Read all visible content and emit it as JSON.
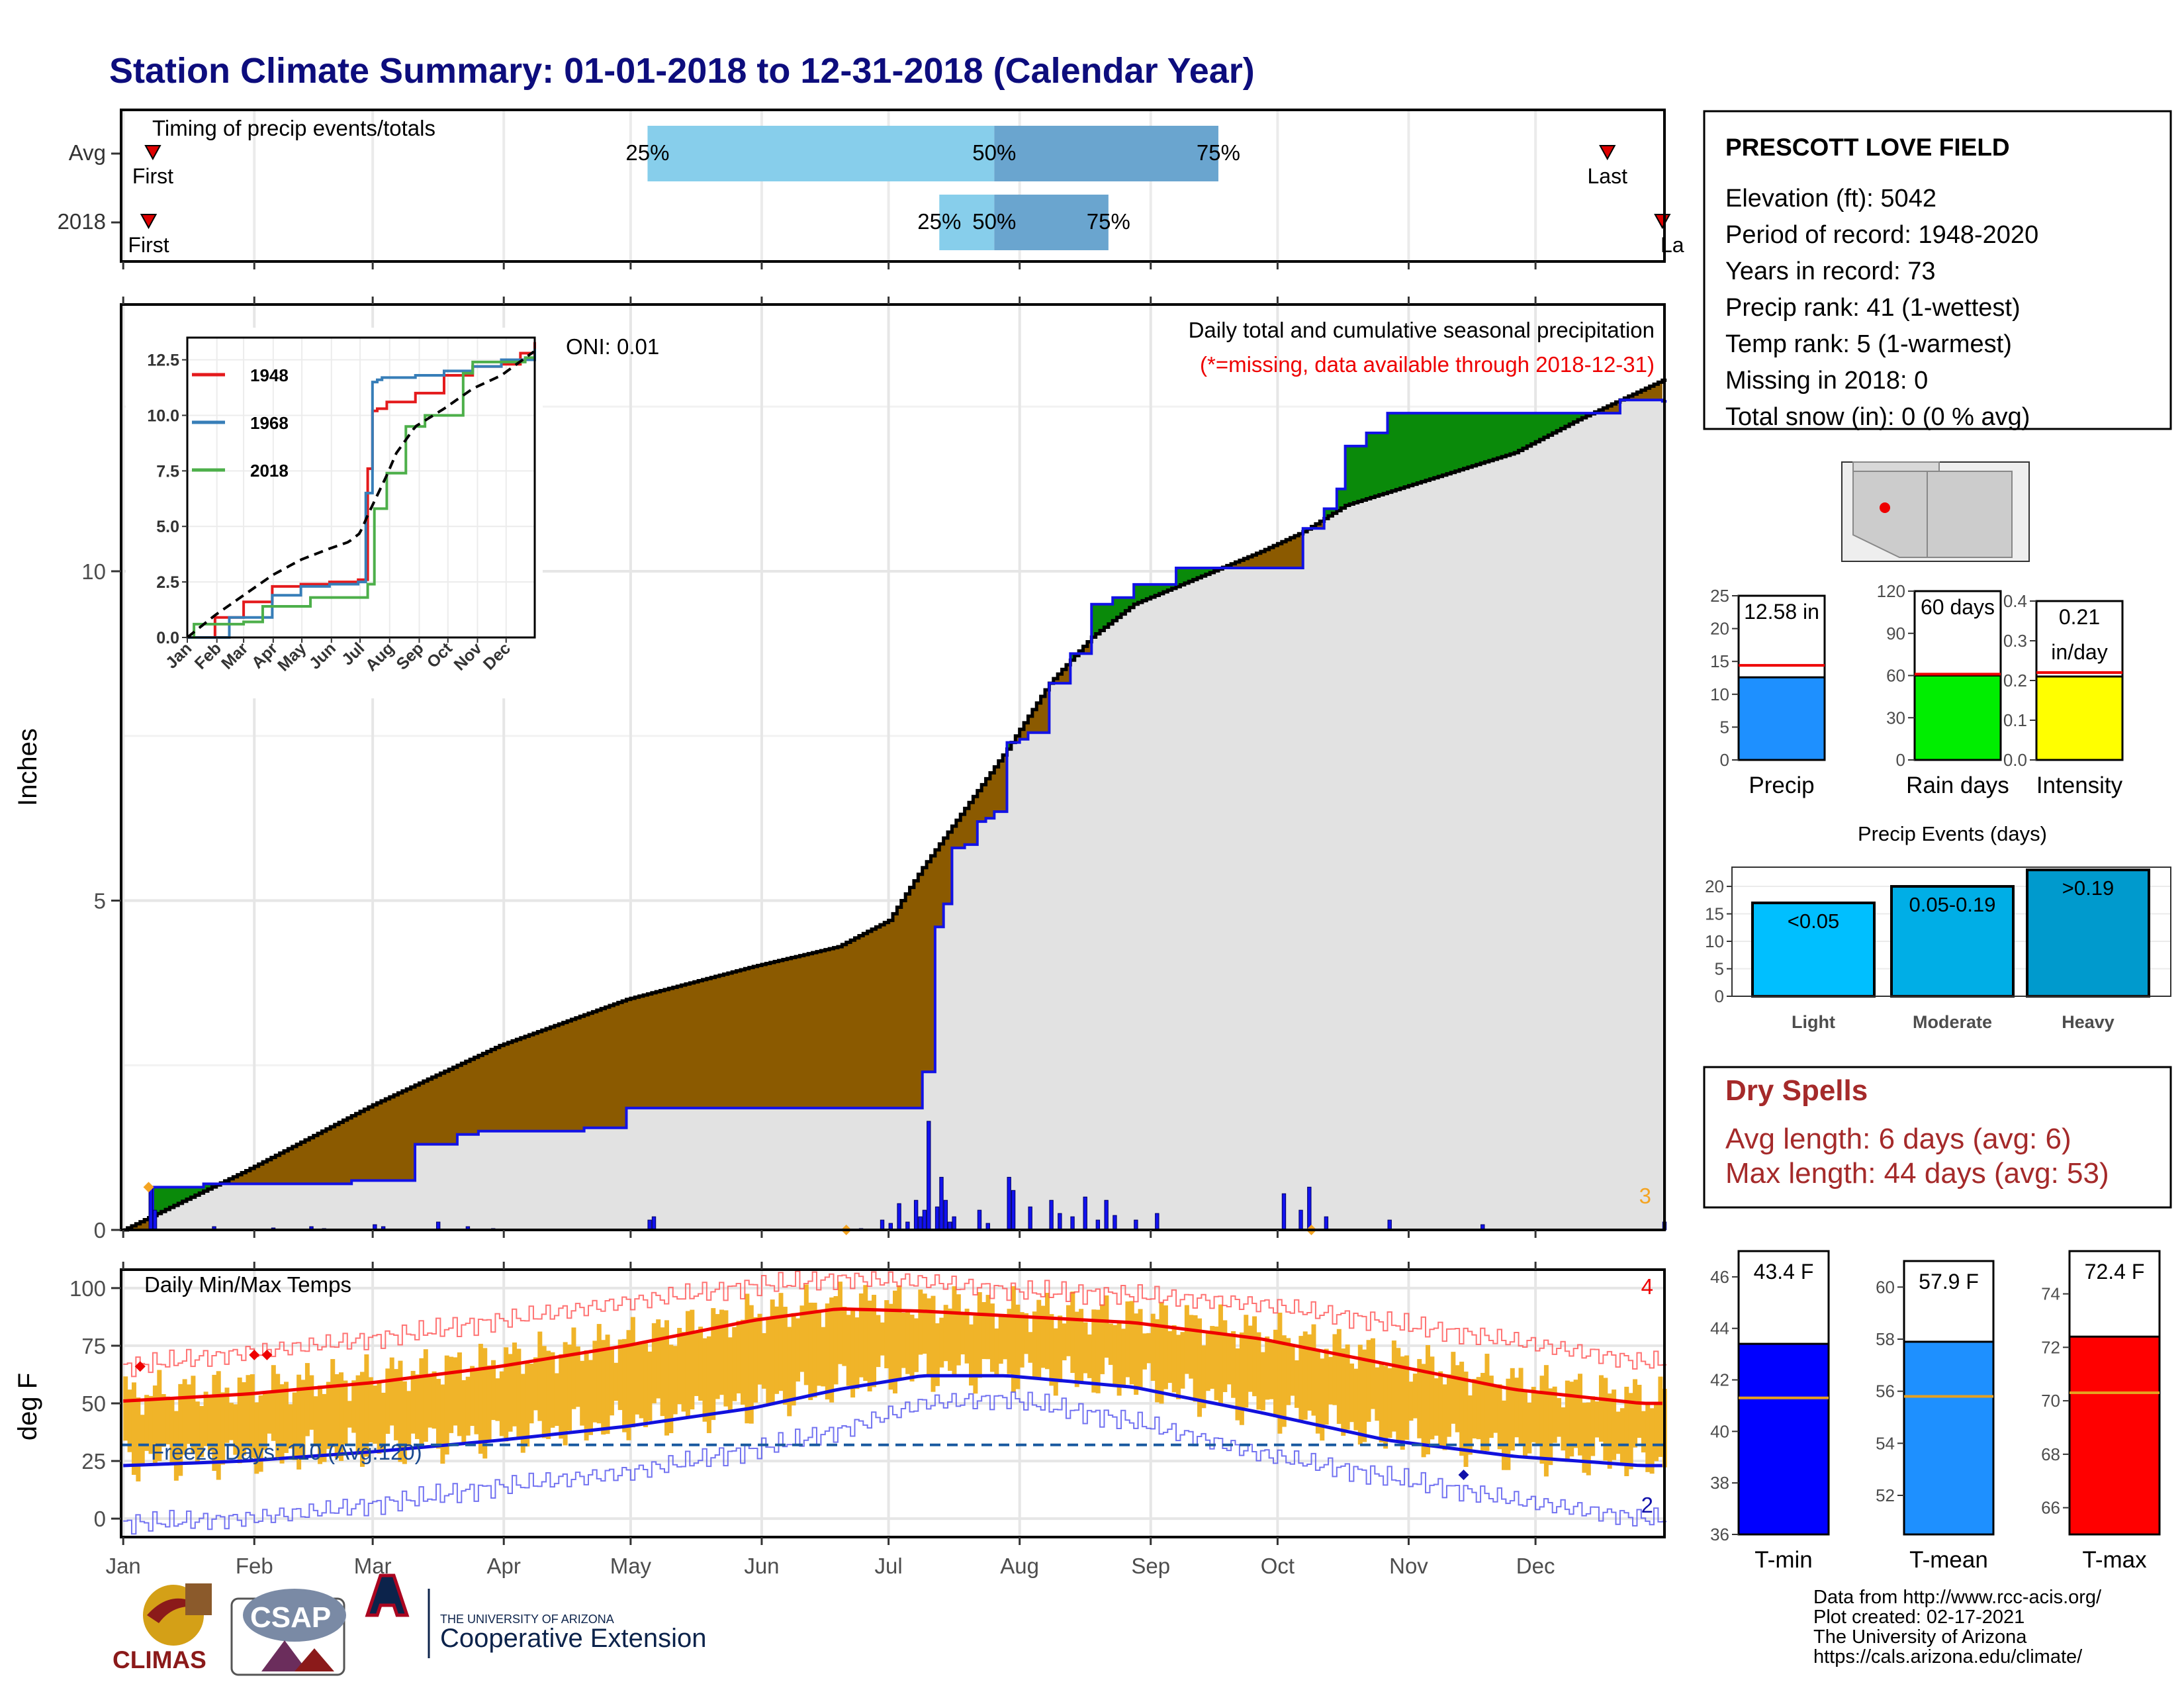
{
  "title": "Station Climate Summary: 01-01-2018 to 12-31-2018 (Calendar Year)",
  "colors": {
    "title": "#0d0d7d",
    "brown": "#8b5a00",
    "green": "#0a8a0a",
    "gray_fill": "#e2e2e2",
    "blue_line": "#1212e6",
    "red": "#ee0000",
    "orange": "#f0b429",
    "tmin_blue": "#1111dd",
    "tmean_blue": "#1e90ff",
    "light_blue": "#87ceeb",
    "mid_blue": "#6aa5cf",
    "dry_red": "#a52a2a",
    "yellow": "#ffff00",
    "lime": "#00ee00"
  },
  "timing_panel": {
    "title": "Timing of precip events/totals",
    "rows": [
      {
        "label": "Avg",
        "first_label": "First",
        "last_label": "Last",
        "first_date": "2018-01-08",
        "last_date": "2018-12-18",
        "p25_label": "25%",
        "p50_label": "50%",
        "p75_label": "75%",
        "p25": "2018-05-05",
        "p50": "2018-07-26",
        "p75": "2018-09-17"
      },
      {
        "label": "2018",
        "first_label": "First",
        "last_label": "La",
        "first_date": "2018-01-07",
        "last_date": "2018-12-31",
        "p25_label": "25%",
        "p50_label": "50%",
        "p75_label": "75%",
        "p25": "2018-07-13",
        "p50": "2018-07-26",
        "p75": "2018-08-22"
      }
    ]
  },
  "precip_panel": {
    "title": "Daily total and cumulative seasonal precipitation",
    "subtitle": "(*=missing, data available through 2018-12-31)",
    "oni": "ONI: 0.01",
    "ylabel": "Inches",
    "yticks": [
      "0",
      "5",
      "10"
    ],
    "corner_count": "3",
    "x_month_labels": [
      "Jan",
      "Feb",
      "Mar",
      "Apr",
      "May",
      "Jun",
      "Jul",
      "Aug",
      "Sep",
      "Oct",
      "Nov",
      "Dec"
    ]
  },
  "inset": {
    "yticks": [
      "0.0",
      "2.5",
      "5.0",
      "7.5",
      "10.0",
      "12.5"
    ],
    "xticks": [
      "Jan",
      "Feb",
      "Mar",
      "Apr",
      "May",
      "Jun",
      "Jul",
      "Aug",
      "Sep",
      "Oct",
      "Nov",
      "Dec"
    ],
    "legend": [
      {
        "name": "1948",
        "color": "#e41a1c"
      },
      {
        "name": "1968",
        "color": "#377eb8"
      },
      {
        "name": "2018",
        "color": "#4daf4a"
      }
    ]
  },
  "temp_panel": {
    "title": "Daily Min/Max Temps",
    "ylabel": "deg F",
    "yticks": [
      "0",
      "25",
      "50",
      "75",
      "100"
    ],
    "freeze_label": "Freeze Days: 110 (Avg:120)",
    "count_hot": "4",
    "count_cold": "2"
  },
  "station": {
    "name": "PRESCOTT LOVE FIELD",
    "lines": [
      "Elevation (ft): 5042",
      "Period of record: 1948-2020",
      "Years in record: 73",
      "Precip rank: 41 (1-wettest)",
      "Temp rank: 5 (1-warmest)",
      "Missing in 2018: 0",
      "Total snow (in): 0 (0 % avg)"
    ]
  },
  "mini_bars": [
    {
      "label": "Precip",
      "value_text": "12.58 in",
      "value_text2": "",
      "value": 12.58,
      "avg": 14.4,
      "ymax": 25,
      "yticks": [
        "0",
        "5",
        "10",
        "15",
        "20",
        "25"
      ],
      "color": "#1e90ff"
    },
    {
      "label": "Rain days",
      "value_text": "60 days",
      "value_text2": "",
      "value": 60,
      "avg": 61,
      "ymax": 120,
      "yticks": [
        "0",
        "30",
        "60",
        "90",
        "120"
      ],
      "color": "#00ee00"
    },
    {
      "label": "Intensity",
      "value_text": "0.21",
      "value_text2": "in/day",
      "value": 0.21,
      "avg": 0.22,
      "ymax": 0.4,
      "yticks": [
        "0.0",
        "0.1",
        "0.2",
        "0.3",
        "0.4"
      ],
      "color": "#ffff00"
    }
  ],
  "precip_events": {
    "title": "Precip Events (days)",
    "yticks": [
      "0",
      "5",
      "10",
      "15",
      "20"
    ],
    "bars": [
      {
        "category": "Light",
        "label": "<0.05",
        "value": 17,
        "color": "#00bfff"
      },
      {
        "category": "Moderate",
        "label": "0.05-0.19",
        "value": 20,
        "color": "#00aee6"
      },
      {
        "category": "Heavy",
        "label": ">0.19",
        "value": 23,
        "color": "#009acd"
      }
    ]
  },
  "dry_spells": {
    "title": "Dry Spells",
    "avg_length": "Avg length: 6 days (avg: 6)",
    "max_length": "Max length: 44 days (avg: 53)"
  },
  "temp_bars": [
    {
      "label": "T-min",
      "value_text": "43.4 F",
      "value": 43.4,
      "avg": 41.3,
      "ymin": 36,
      "ymax": 47,
      "yticks": [
        "36",
        "38",
        "40",
        "42",
        "44",
        "46"
      ],
      "color": "#0000ff"
    },
    {
      "label": "T-mean",
      "value_text": "57.9 F",
      "value": 57.9,
      "avg": 55.8,
      "ymin": 50.5,
      "ymax": 61,
      "yticks": [
        "52",
        "54",
        "56",
        "58",
        "60"
      ],
      "color": "#1e90ff"
    },
    {
      "label": "T-max",
      "value_text": "72.4 F",
      "value": 72.4,
      "avg": 70.3,
      "ymin": 65,
      "ymax": 75.6,
      "yticks": [
        "66",
        "68",
        "70",
        "72",
        "74"
      ],
      "color": "#ff0000"
    }
  ],
  "credits": [
    "Data from http://www.rcc-acis.org/",
    "Plot created: 02-17-2021",
    "The University of Arizona",
    "https://cals.arizona.edu/climate/"
  ],
  "logos": {
    "climas": "CLIMAS",
    "csap": "CSAP",
    "ua_line1": "THE UNIVERSITY OF ARIZONA",
    "ua_line2": "Cooperative Extension"
  },
  "chart_data": [
    {
      "type": "area",
      "name": "cumulative precipitation 2018 vs average",
      "x_unit": "day of year",
      "ylim": [
        0,
        14
      ],
      "series": [
        {
          "name": "2018",
          "x": [
            1,
            7,
            8,
            15,
            20,
            35,
            55,
            70,
            80,
            85,
            110,
            120,
            130,
            182,
            190,
            193,
            195,
            197,
            200,
            203,
            205,
            207,
            210,
            213,
            215,
            220,
            225,
            230,
            235,
            240,
            250,
            270,
            280,
            285,
            288,
            290,
            295,
            300,
            305,
            320,
            340,
            355,
            365
          ],
          "values": [
            0,
            0,
            0.65,
            0.65,
            0.7,
            0.7,
            0.75,
            1.3,
            1.45,
            1.5,
            1.55,
            1.85,
            1.85,
            1.85,
            2.4,
            4.6,
            4.95,
            5.8,
            5.85,
            6.2,
            6.25,
            6.35,
            7.4,
            7.45,
            7.55,
            8.3,
            8.75,
            9.5,
            9.6,
            9.8,
            10.05,
            10.05,
            10.65,
            10.95,
            11.25,
            11.9,
            12.1,
            12.4,
            12.4,
            12.4,
            12.4,
            12.6,
            12.58
          ]
        },
        {
          "name": "Average",
          "x": [
            1,
            30,
            60,
            90,
            120,
            150,
            170,
            182,
            190,
            200,
            210,
            220,
            230,
            240,
            255,
            270,
            280,
            290,
            300,
            315,
            330,
            345,
            365
          ],
          "values": [
            0,
            0.9,
            1.9,
            2.8,
            3.5,
            4.0,
            4.3,
            4.7,
            5.5,
            6.4,
            7.3,
            8.3,
            9.0,
            9.5,
            9.9,
            10.3,
            10.6,
            11.0,
            11.2,
            11.5,
            11.8,
            12.3,
            12.9
          ]
        }
      ],
      "daily_bars": {
        "x": [
          7,
          8,
          22,
          36,
          45,
          48,
          60,
          62,
          75,
          82,
          88,
          125,
          126,
          175,
          180,
          182,
          184,
          186,
          188,
          189,
          190,
          191,
          193,
          194,
          195,
          196,
          197,
          203,
          205,
          210,
          211,
          215,
          220,
          222,
          225,
          228,
          231,
          233,
          235,
          240,
          245,
          275,
          279,
          281,
          285,
          300,
          322,
          365
        ],
        "values": [
          0.65,
          0.3,
          0.05,
          0.03,
          0.05,
          0.02,
          0.08,
          0.05,
          0.12,
          0.05,
          0.02,
          0.15,
          0.2,
          0.02,
          0.15,
          0.1,
          0.4,
          0.12,
          0.45,
          0.2,
          0.3,
          1.65,
          0.35,
          0.8,
          0.45,
          0.12,
          0.2,
          0.3,
          0.1,
          0.8,
          0.6,
          0.35,
          0.45,
          0.25,
          0.2,
          0.5,
          0.15,
          0.45,
          0.22,
          0.15,
          0.25,
          0.55,
          0.3,
          0.65,
          0.2,
          0.15,
          0.08,
          0.12
        ]
      }
    },
    {
      "type": "line",
      "name": "inset cumulative precipitation",
      "x_unit": "day of year",
      "ylim": [
        0,
        13.5
      ],
      "series": [
        {
          "name": "1948",
          "x": [
            1,
            30,
            60,
            90,
            120,
            150,
            180,
            190,
            195,
            200,
            210,
            240,
            270,
            300,
            330,
            350,
            365
          ],
          "values": [
            0,
            0.9,
            1.6,
            2.3,
            2.4,
            2.5,
            2.6,
            7.6,
            10.2,
            10.3,
            10.6,
            11.0,
            11.8,
            12.2,
            12.3,
            12.8,
            13.3
          ]
        },
        {
          "name": "1968",
          "x": [
            1,
            45,
            90,
            120,
            150,
            180,
            188,
            195,
            200,
            205,
            240,
            270,
            300,
            330,
            365
          ],
          "values": [
            0,
            0.9,
            1.9,
            2.3,
            2.4,
            2.5,
            6.5,
            11.5,
            11.6,
            11.7,
            11.8,
            12.0,
            12.2,
            12.5,
            13.0
          ]
        },
        {
          "name": "2018",
          "x": [
            7,
            8,
            60,
            80,
            130,
            182,
            190,
            197,
            210,
            230,
            250,
            270,
            290,
            300,
            355,
            365
          ],
          "values": [
            0,
            0.6,
            0.7,
            1.4,
            1.8,
            1.8,
            2.4,
            5.8,
            7.4,
            9.5,
            10.0,
            10.0,
            11.9,
            12.4,
            12.6,
            12.6
          ]
        },
        {
          "name": "Average",
          "x": [
            1,
            30,
            60,
            90,
            120,
            150,
            170,
            182,
            190,
            200,
            210,
            220,
            240,
            270,
            300,
            330,
            365
          ],
          "values": [
            0,
            1.0,
            1.9,
            2.8,
            3.5,
            4.0,
            4.3,
            4.7,
            5.5,
            6.4,
            7.3,
            8.3,
            9.5,
            10.3,
            11.2,
            11.8,
            12.9
          ]
        }
      ]
    },
    {
      "type": "line",
      "name": "daily min/max temps",
      "x_unit": "day of year",
      "ylim": [
        -8,
        108
      ],
      "series": [
        {
          "name": "Normal Tmax",
          "x": [
            1,
            30,
            60,
            90,
            120,
            150,
            170,
            190,
            210,
            240,
            270,
            300,
            330,
            360,
            365
          ],
          "values": [
            51,
            54,
            59,
            66,
            75,
            86,
            91,
            90,
            88,
            85,
            78,
            67,
            56,
            50,
            50
          ]
        },
        {
          "name": "Normal Tmin",
          "x": [
            1,
            30,
            60,
            90,
            120,
            150,
            170,
            190,
            210,
            240,
            270,
            300,
            330,
            360,
            365
          ],
          "values": [
            23,
            25,
            29,
            34,
            40,
            48,
            56,
            62,
            62,
            57,
            46,
            34,
            27,
            23,
            23
          ]
        },
        {
          "name": "Record high",
          "x": [
            1,
            30,
            60,
            90,
            120,
            150,
            170,
            190,
            210,
            240,
            270,
            300,
            330,
            360,
            365
          ],
          "values": [
            66,
            72,
            78,
            86,
            94,
            101,
            104,
            103,
            99,
            97,
            93,
            85,
            77,
            68,
            68
          ]
        },
        {
          "name": "Record low",
          "x": [
            1,
            30,
            60,
            90,
            120,
            150,
            170,
            190,
            210,
            240,
            270,
            300,
            330,
            360,
            365
          ],
          "values": [
            -2,
            0,
            6,
            14,
            20,
            30,
            38,
            50,
            52,
            42,
            28,
            18,
            8,
            0,
            0
          ]
        }
      ],
      "freeze_line": 32
    }
  ]
}
